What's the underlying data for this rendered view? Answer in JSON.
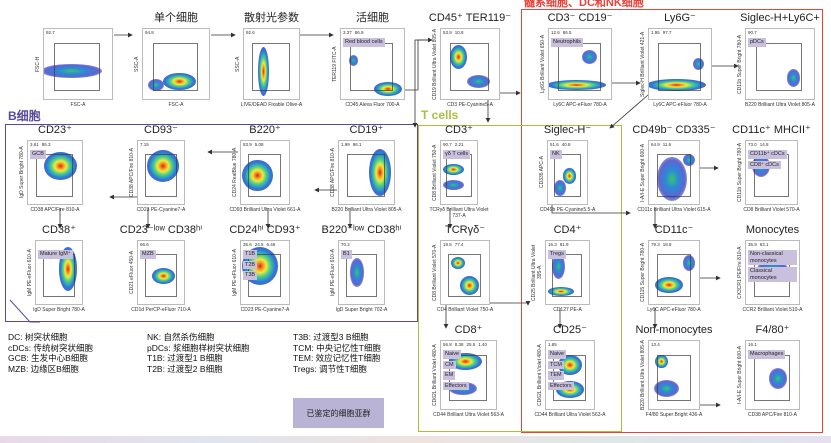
{
  "sections": {
    "myeloid": {
      "title": "髓系细胞、DC和NK细胞",
      "color": "#e8433a"
    },
    "b_cells": {
      "title": "B细胞",
      "color": "#5a4a9a"
    },
    "t_cells": {
      "title": "T cells",
      "color": "#a8c040"
    }
  },
  "panels": [
    {
      "title": "",
      "xlabel": "FSC-A",
      "ylabel": "FSC-H",
      "stats": [
        "92.7"
      ],
      "badges": []
    },
    {
      "title": "单个细胞",
      "xlabel": "FSC-A",
      "ylabel": "SSC-A",
      "stats": [
        "94.8"
      ],
      "badges": []
    },
    {
      "title": "散射光参数",
      "xlabel": "LIVE/DEAD Fixable Olive-A",
      "ylabel": "SSC-A",
      "stats": [
        "92.6"
      ],
      "badges": []
    },
    {
      "title": "活细胞",
      "xlabel": "CD45 Alexa Fluor 700-A",
      "ylabel": "TER119 FITC-A",
      "stats": [
        "3.37",
        "86.9"
      ],
      "badges": [
        "Red blood cells"
      ]
    },
    {
      "title": "CD45⁺ TER119⁻",
      "xlabel": "CD3 PE-Cyanine5-A",
      "ylabel": "CD19 Brilliant Ultra Violet 805-A",
      "stats": [
        "53.9",
        "10.8"
      ],
      "badges": []
    },
    {
      "title": "CD3⁻ CD19⁻",
      "xlabel": "Ly6C APC-eFluor 780-A",
      "ylabel": "Ly6G Brilliant Violet 650-A",
      "stats": [
        "12.6",
        "86.5"
      ],
      "badges": [
        "Neutrophils"
      ]
    },
    {
      "title": "Ly6G⁻",
      "xlabel": "Ly6C APC-eFluor 780-A",
      "ylabel": "Siglec-H Brilliant Violet 421-A",
      "stats": [
        "1.95",
        "97.7"
      ],
      "badges": []
    },
    {
      "title": "Siglec-H+Ly6C+",
      "xlabel": "B220 Brilliant Ultra Violet 805-A",
      "ylabel": "CD11b Super Bright 780-A",
      "stats": [
        "90.7"
      ],
      "badges": [
        "pDCs"
      ]
    },
    {
      "title": "CD23⁺",
      "xlabel": "CD38 APC/Fire 810-A",
      "ylabel": "IgD Super Bright 780-A",
      "stats": [
        "3.61",
        "95.3"
      ],
      "badges": [
        "GCB"
      ]
    },
    {
      "title": "CD93⁻",
      "xlabel": "CD23 PE-Cyanine7-A",
      "ylabel": "CD38 APC/Fire 810-A",
      "stats": [
        "7.15"
      ],
      "badges": []
    },
    {
      "title": "B220⁺",
      "xlabel": "CD93 Brilliant Ultra Violet 661-A",
      "ylabel": "CD24 RealBlue 780-A",
      "stats": [
        "83.9",
        "5.08"
      ],
      "badges": []
    },
    {
      "title": "CD19⁺",
      "xlabel": "B220 Brilliant Ultra Violet 805-A",
      "ylabel": "CD38 APC/Fire 810-A",
      "stats": [
        "1.99",
        "96.1"
      ],
      "badges": []
    },
    {
      "title": "CD38⁺",
      "xlabel": "IgD Super Bright 780-A",
      "ylabel": "IgM PE-eFluor 610-A",
      "stats": [],
      "badges": [
        "Mature IgM⁺"
      ]
    },
    {
      "title": "CD23⁻ˡᵒʷ CD38ʰⁱ",
      "xlabel": "CD1d PerCP-eFluor 710-A",
      "ylabel": "CD21 eFluor 450-A",
      "stats": [
        "66.6"
      ],
      "badges": [
        "MZB"
      ]
    },
    {
      "title": "CD24ʰⁱ CD93⁺",
      "xlabel": "CD23 PE-Cyanine7-A",
      "ylabel": "IgM PE-eFluor 610-A",
      "stats": [
        "35.6",
        "24.5",
        "6.46"
      ],
      "badges": [
        "T1B",
        "T2B",
        "T3B"
      ]
    },
    {
      "title": "B220⁻ˡᵒʷ CD38ʰⁱ",
      "xlabel": "IgD Super Bright 702-A",
      "ylabel": "IgM PE-eFluor 610-A",
      "stats": [
        "70.2"
      ],
      "badges": [
        "B1"
      ]
    },
    {
      "title": "CD3⁺",
      "xlabel": "TCRγδ Brilliant Ultra Violet 737-A",
      "ylabel": "CD8 Brilliant Violet 750-A",
      "stats": [
        "90.7",
        "2.21"
      ],
      "badges": [
        "γδ T cells"
      ]
    },
    {
      "title": "Siglec-H⁻",
      "xlabel": "CD49b PE-Cyanine5.5-A",
      "ylabel": "CD335 APC-A",
      "stats": [
        "51.6",
        "40.8"
      ],
      "badges": [
        "NK"
      ]
    },
    {
      "title": "CD49b⁻ CD335⁻",
      "xlabel": "CD11c Brilliant Ultra Violet 615-A",
      "ylabel": "I-A/I-E Super Bright 600-A",
      "stats": [
        "64.9",
        "11.6"
      ],
      "badges": []
    },
    {
      "title": "CD11c⁺ MHCII⁺",
      "xlabel": "CD8 Brilliant Violet 570-A",
      "ylabel": "CD11b Super Bright 780-A",
      "stats": [
        "73.0",
        "14.8"
      ],
      "badges": [
        "CD11b⁺ cDCs",
        "CD8⁺ cDCs"
      ]
    },
    {
      "title": "TCRγδ⁻",
      "xlabel": "CD4 Brilliant Violet 750-A",
      "ylabel": "CD8 Brilliant Violet 570-A",
      "stats": [
        "19.5",
        "77.4"
      ],
      "badges": []
    },
    {
      "title": "CD4⁺",
      "xlabel": "CD127 PE-A",
      "ylabel": "CD25 Brilliant Ultra Violet 395-A",
      "stats": [
        "16.3",
        "81.9"
      ],
      "badges": [
        "Tregs"
      ]
    },
    {
      "title": "CD11c⁻",
      "xlabel": "Ly6C APC-eFluor 780-A",
      "ylabel": "CD115 Super Bright 780-A",
      "stats": [
        "79.3",
        "18.8"
      ],
      "badges": []
    },
    {
      "title": "Monocytes",
      "xlabel": "CCR2 Brilliant Violet 510-A",
      "ylabel": "CX3CR1 PE/Fire 810-A",
      "stats": [
        "35.9",
        "63.1"
      ],
      "badges": [
        "Non-classical monocytes",
        "Classical monocytes"
      ]
    },
    {
      "title": "CD8⁺",
      "xlabel": "CD44 Brilliant Ultra Violet 563-A",
      "ylabel": "CD62L Brilliant Violet 480-A",
      "stats": [
        "56.8",
        "8.38",
        "25.5",
        "1.40"
      ],
      "badges": [
        "Naive",
        "CM",
        "EM",
        "Effectors"
      ]
    },
    {
      "title": "CD25⁻",
      "xlabel": "CD44 Brilliant Ultra Violet 563-A",
      "ylabel": "CD62L Brilliant Violet 480-A",
      "stats": [
        "1.85"
      ],
      "badges": [
        "Naive",
        "TCM",
        "TEM",
        "Effectors"
      ]
    },
    {
      "title": "Non-monocytes",
      "xlabel": "F4/80 Super Bright 436-A",
      "ylabel": "B220 Brilliant Ultra Violet 805-A",
      "stats": [
        "13.4"
      ],
      "badges": []
    },
    {
      "title": "F4/80⁺",
      "xlabel": "CD38 APC/Fire 810-A",
      "ylabel": "I-A/I-E Super Bright 600-A",
      "stats": [
        "16.1"
      ],
      "badges": [
        "Macrophages"
      ]
    }
  ],
  "legend": {
    "col1": [
      "DC: 树突状细胞",
      "cDCs: 传统树突状细胞",
      "GCB: 生发中心B细胞",
      "MZB: 边缘区B细胞"
    ],
    "col2": [
      "NK: 自然杀伤细胞",
      "pDCs: 浆细胞样树突状细胞",
      "T1B: 过渡型1 B细胞",
      "T2B: 过渡型2 B细胞"
    ],
    "col3": [
      "T3B: 过渡型3 B细胞",
      "TCM: 中央记忆性T细胞",
      "TEM: 效应记忆性T细胞",
      "Tregs: 调节性T细胞"
    ]
  },
  "identified_label": "已鉴定的细胞亚群"
}
